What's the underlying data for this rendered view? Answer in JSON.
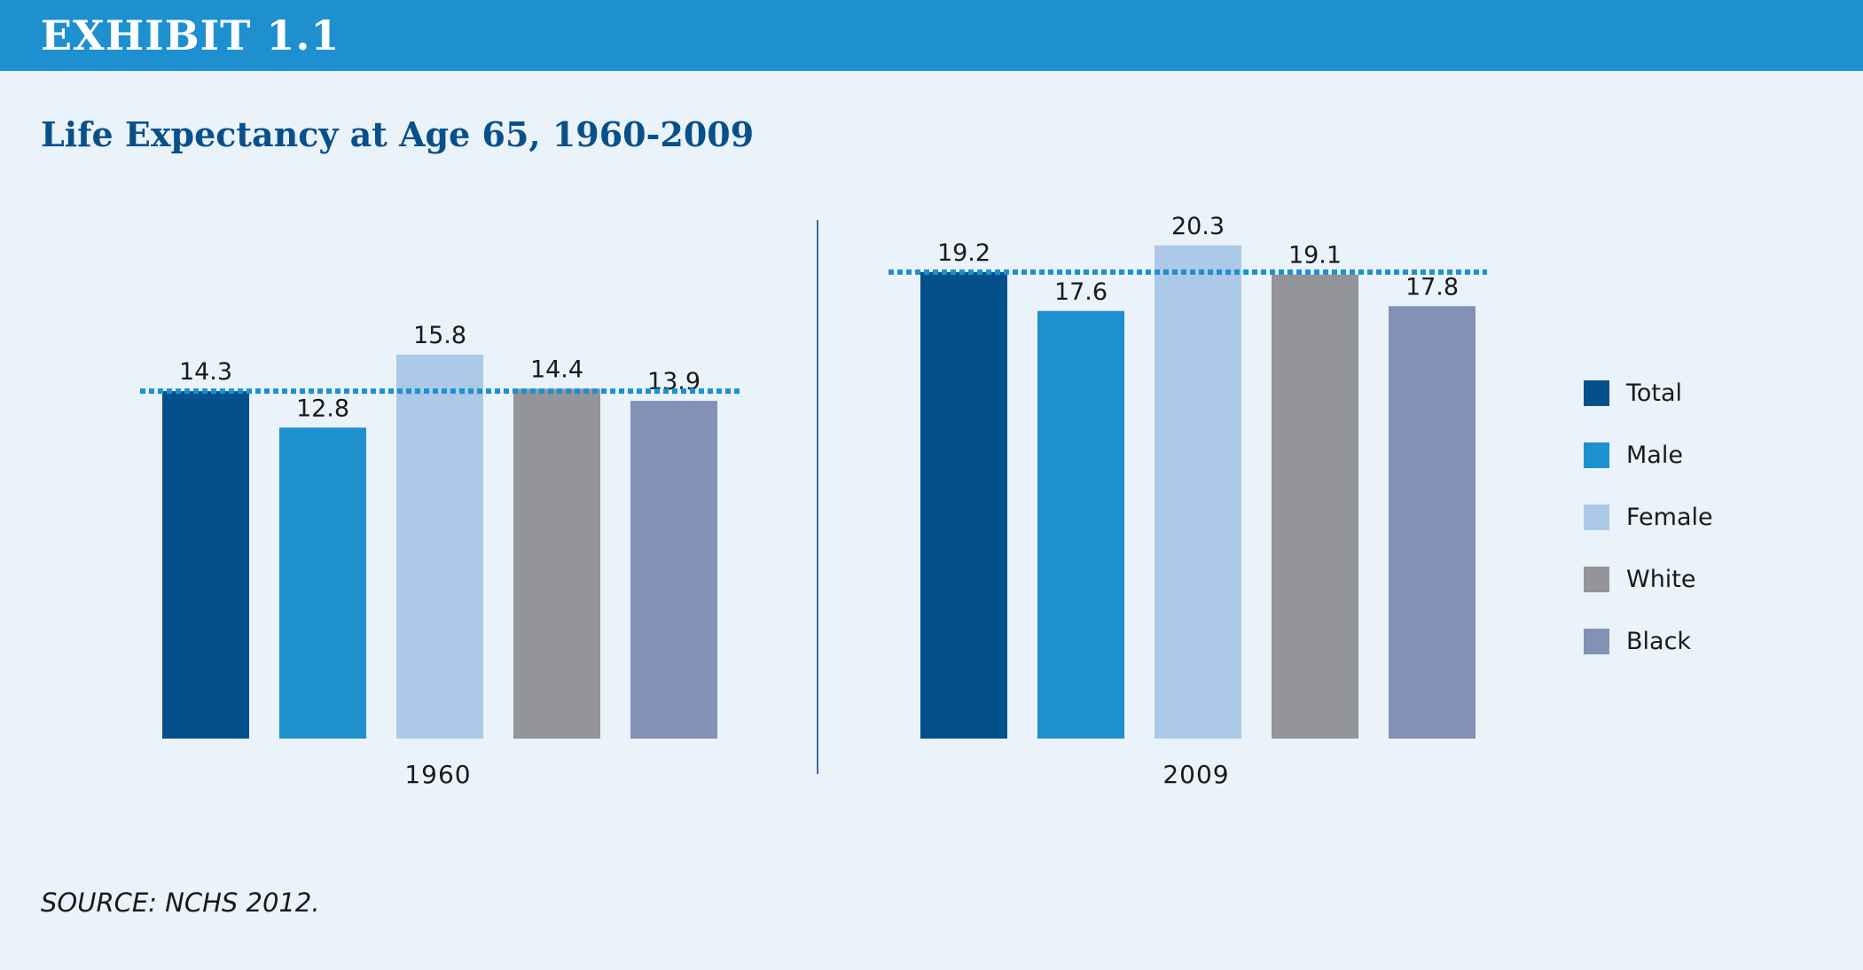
{
  "header": {
    "exhibit_label": "EXHIBIT 1.1"
  },
  "source": {
    "text": "SOURCE:  NCHS 2012."
  },
  "colors": {
    "header_bar": "#1e90d0",
    "background": "#eaf2fa",
    "title": "#08508a",
    "reference_line": "#1e90d0",
    "divider": "#3a6e9a",
    "Total": "#04508a",
    "Male": "#1e90d0",
    "Female": "#adc9e8",
    "White": "#939598",
    "Black": "#8391b6"
  },
  "chart_data": {
    "type": "bar",
    "title": "Life Expectancy at Age 65, 1960-2009",
    "xlabel": "",
    "ylabel": "",
    "ylim": [
      0,
      20.3
    ],
    "grid": false,
    "legend_position": "right",
    "categories": [
      "1960",
      "2009"
    ],
    "series": [
      {
        "name": "Total",
        "values": [
          14.3,
          19.2
        ],
        "labels": [
          "14.3",
          "19.2"
        ]
      },
      {
        "name": "Male",
        "values": [
          12.8,
          17.6
        ],
        "labels": [
          "12.8",
          "17.6"
        ]
      },
      {
        "name": "Female",
        "values": [
          15.8,
          20.3
        ],
        "labels": [
          "15.8",
          "20.3"
        ]
      },
      {
        "name": "White",
        "values": [
          14.4,
          19.1
        ],
        "labels": [
          "14.4",
          "19.1"
        ]
      },
      {
        "name": "Black",
        "values": [
          13.9,
          17.8
        ],
        "labels": [
          "13.9",
          "17.8"
        ]
      }
    ],
    "reference_lines": [
      {
        "category": "1960",
        "value": 14.3,
        "style": "dotted"
      },
      {
        "category": "2009",
        "value": 19.2,
        "style": "dotted"
      }
    ]
  }
}
